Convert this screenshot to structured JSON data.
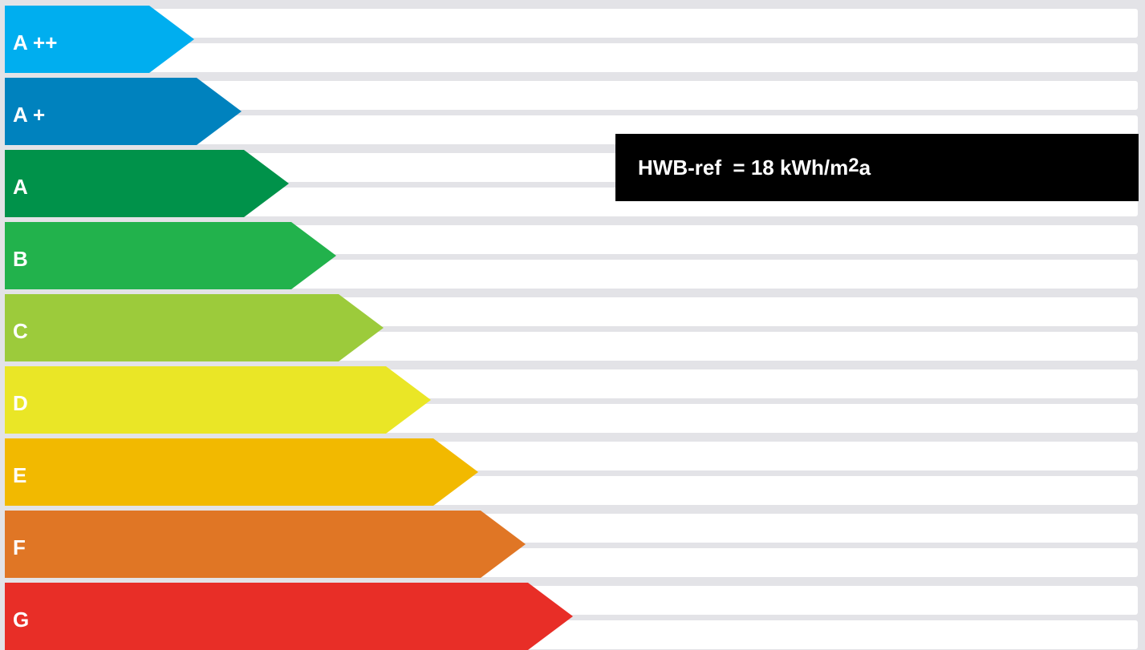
{
  "energy_scale": {
    "classes": [
      {
        "label": "A ++",
        "color": "#00aeef"
      },
      {
        "label": "A +",
        "color": "#0082be"
      },
      {
        "label": "A",
        "color": "#00924a"
      },
      {
        "label": "B",
        "color": "#22b24c"
      },
      {
        "label": "C",
        "color": "#9ccb3b"
      },
      {
        "label": "D",
        "color": "#eae626"
      },
      {
        "label": "E",
        "color": "#f2b900"
      },
      {
        "label": "F",
        "color": "#e07625"
      },
      {
        "label": "G",
        "color": "#e82e27"
      }
    ]
  },
  "indicator": {
    "prefix": "HWB-ref  = 18 kWh/m",
    "superscript": "2",
    "suffix": "a"
  }
}
